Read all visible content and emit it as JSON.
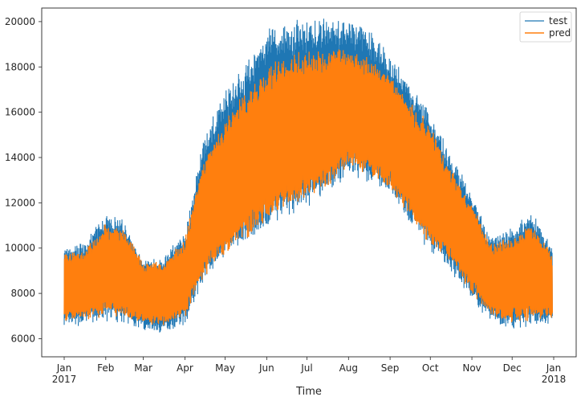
{
  "chart_data": {
    "type": "line",
    "title": "",
    "xlabel": "Time",
    "ylabel": "",
    "x_range": [
      "2017-01-01",
      "2018-01-01"
    ],
    "ylim": [
      5200,
      20600
    ],
    "y_ticks": [
      6000,
      8000,
      10000,
      12000,
      14000,
      16000,
      18000,
      20000
    ],
    "x_ticks": [
      {
        "date": "2017-01-01",
        "label": "Jan",
        "sublabel": "2017"
      },
      {
        "date": "2017-02-01",
        "label": "Feb",
        "sublabel": ""
      },
      {
        "date": "2017-03-01",
        "label": "Mar",
        "sublabel": ""
      },
      {
        "date": "2017-04-01",
        "label": "Apr",
        "sublabel": ""
      },
      {
        "date": "2017-05-01",
        "label": "May",
        "sublabel": ""
      },
      {
        "date": "2017-06-01",
        "label": "Jun",
        "sublabel": ""
      },
      {
        "date": "2017-07-01",
        "label": "Jul",
        "sublabel": ""
      },
      {
        "date": "2017-08-01",
        "label": "Aug",
        "sublabel": ""
      },
      {
        "date": "2017-09-01",
        "label": "Sep",
        "sublabel": ""
      },
      {
        "date": "2017-10-01",
        "label": "Oct",
        "sublabel": ""
      },
      {
        "date": "2017-11-01",
        "label": "Nov",
        "sublabel": ""
      },
      {
        "date": "2017-12-01",
        "label": "Dec",
        "sublabel": ""
      },
      {
        "date": "2018-01-01",
        "label": "Jan",
        "sublabel": "2018"
      }
    ],
    "grid": false,
    "legend": {
      "position": "top-right",
      "entries": [
        "test",
        "pred"
      ]
    },
    "series": [
      {
        "name": "test",
        "color": "#1f77b4",
        "x": [
          "2017-01-01",
          "2017-01-15",
          "2017-02-01",
          "2017-02-15",
          "2017-03-01",
          "2017-03-15",
          "2017-04-01",
          "2017-04-15",
          "2017-05-01",
          "2017-05-15",
          "2017-06-01",
          "2017-06-15",
          "2017-07-01",
          "2017-07-15",
          "2017-08-01",
          "2017-08-15",
          "2017-09-01",
          "2017-09-15",
          "2017-10-01",
          "2017-10-15",
          "2017-11-01",
          "2017-11-15",
          "2017-12-01",
          "2017-12-15",
          "2017-12-31"
        ],
        "low": [
          6500,
          6700,
          6900,
          6800,
          6400,
          6300,
          6700,
          8700,
          9600,
          10300,
          11000,
          11500,
          12000,
          12500,
          13400,
          13100,
          12400,
          11200,
          10000,
          9200,
          7800,
          6800,
          6500,
          6600,
          6700
        ],
        "high": [
          10000,
          10100,
          11500,
          11100,
          9500,
          9500,
          10600,
          14800,
          16800,
          17800,
          19500,
          19800,
          19900,
          20100,
          20000,
          19600,
          18400,
          17200,
          16100,
          14100,
          12400,
          10400,
          10800,
          11500,
          10000
        ]
      },
      {
        "name": "pred",
        "color": "#ff7f0e",
        "x": [
          "2017-01-01",
          "2017-01-15",
          "2017-02-01",
          "2017-02-15",
          "2017-03-01",
          "2017-03-15",
          "2017-04-01",
          "2017-04-15",
          "2017-05-01",
          "2017-05-15",
          "2017-06-01",
          "2017-06-15",
          "2017-07-01",
          "2017-07-15",
          "2017-08-01",
          "2017-08-15",
          "2017-09-01",
          "2017-09-15",
          "2017-10-01",
          "2017-10-15",
          "2017-11-01",
          "2017-11-15",
          "2017-12-01",
          "2017-12-15",
          "2017-12-31"
        ],
        "low": [
          6800,
          6900,
          7100,
          7000,
          6700,
          6600,
          7000,
          8900,
          9800,
          10500,
          11300,
          11800,
          12300,
          12800,
          13700,
          13400,
          12700,
          11500,
          10300,
          9500,
          8100,
          7100,
          6800,
          6900,
          7000
        ],
        "high": [
          9700,
          9800,
          11000,
          10700,
          9300,
          9300,
          10300,
          13900,
          15600,
          16700,
          17800,
          18300,
          18600,
          18700,
          18700,
          18400,
          17600,
          16400,
          15300,
          13500,
          11900,
          10100,
          10400,
          11000,
          9700
        ]
      }
    ]
  }
}
